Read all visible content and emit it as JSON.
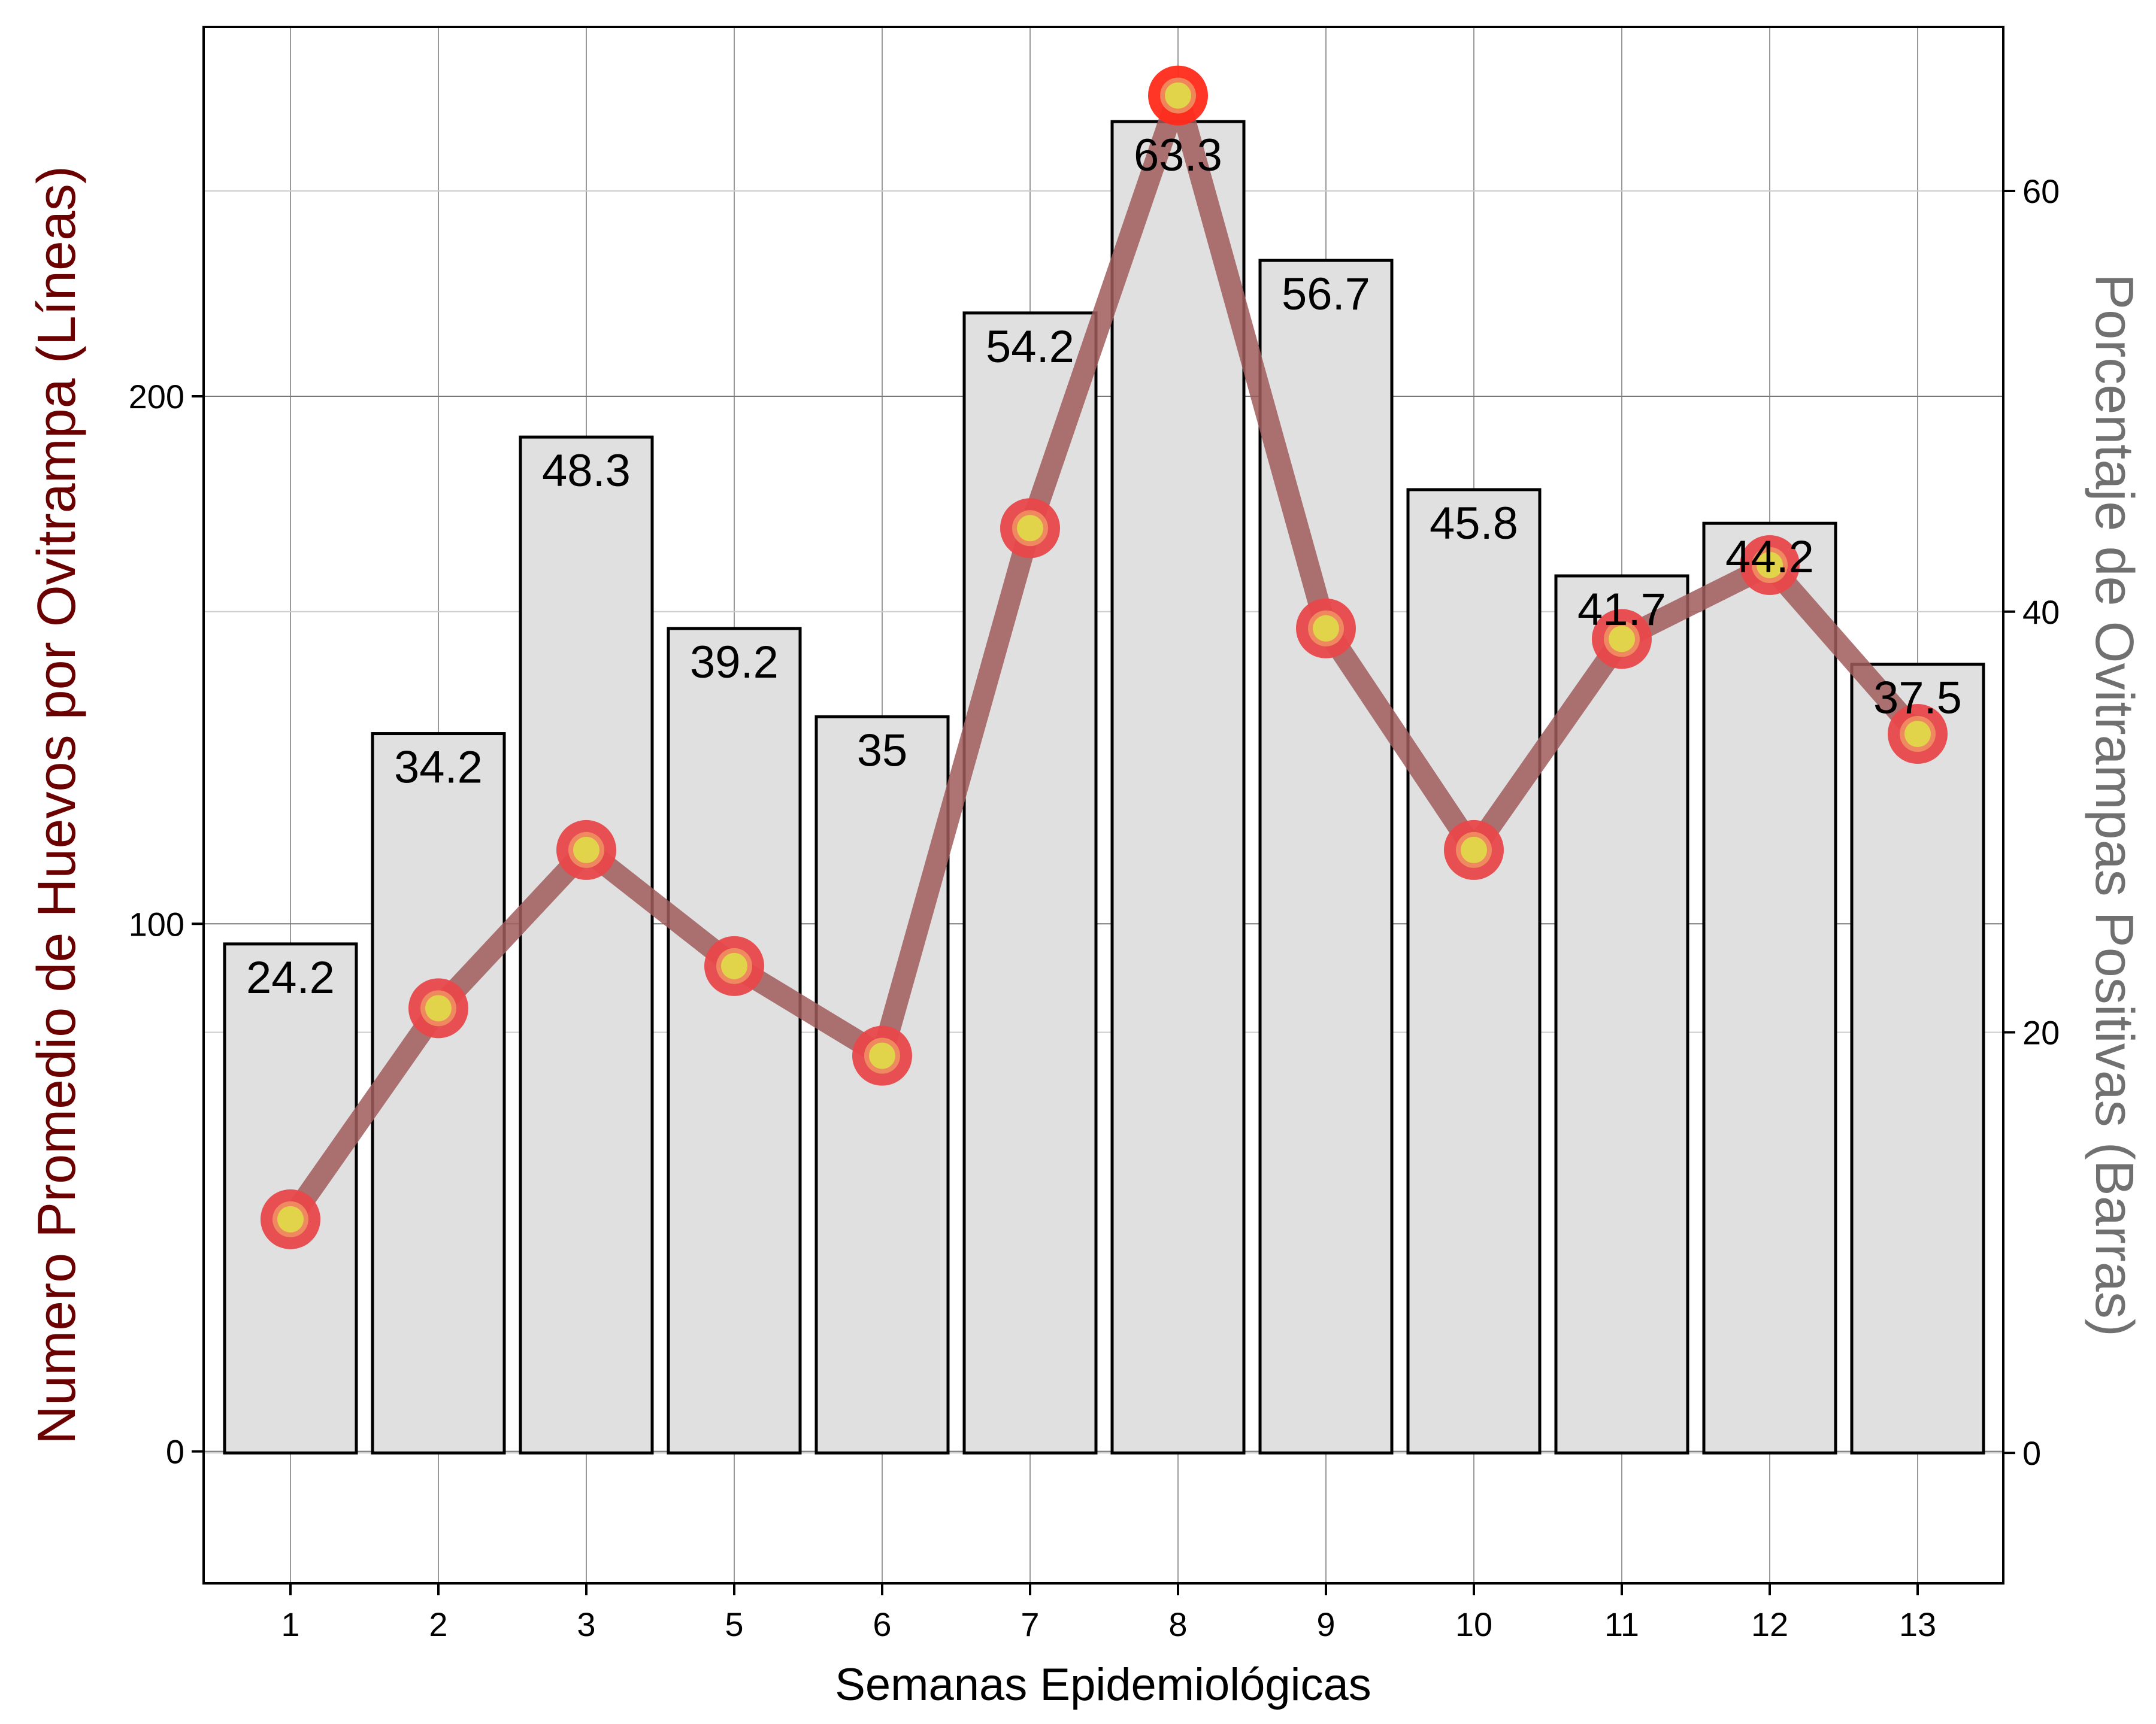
{
  "chart_data": {
    "type": "bar",
    "categories": [
      "1",
      "2",
      "3",
      "5",
      "6",
      "7",
      "8",
      "9",
      "10",
      "11",
      "12",
      "13"
    ],
    "xlabel": "Semanas Epidemiológicas",
    "ylabel_left": "Numero Promedio de Huevos por Ovitrampa (Líneas)",
    "ylabel_right": "Porcentaje de Ovitrampas Positivas (Barras)",
    "left_axis": {
      "ylim": [
        -25,
        270
      ],
      "ticks": [
        0,
        100,
        200
      ]
    },
    "right_axis": {
      "ylim": [
        -6.2,
        67.8
      ],
      "ticks": [
        0,
        20,
        40,
        60
      ]
    },
    "grid": true,
    "series": [
      {
        "type": "bar",
        "axis": "right",
        "values": [
          24.2,
          34.2,
          48.3,
          39.2,
          35,
          54.2,
          63.3,
          56.7,
          45.8,
          41.7,
          44.2,
          37.5
        ],
        "labels": [
          "24.2",
          "34.2",
          "48.3",
          "39.2",
          "35",
          "54.2",
          "63.3",
          "56.7",
          "45.8",
          "41.7",
          "44.2",
          "37.5"
        ]
      },
      {
        "type": "line",
        "axis": "left",
        "values": [
          44,
          84,
          114,
          92,
          75,
          175,
          257,
          156,
          114,
          154,
          168,
          136
        ]
      }
    ],
    "colors": {
      "bar_fill": "#e0e0e0",
      "bar_edge": "#000000",
      "line": "#a05a5a",
      "marker_outer": "#e8474a",
      "marker_peak_outer": "#ff2a1a",
      "marker_inner": "#e2d44a",
      "ylabel_left": "#6b0000",
      "ylabel_right": "#707070"
    }
  }
}
